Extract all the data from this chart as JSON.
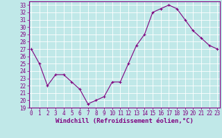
{
  "x": [
    0,
    1,
    2,
    3,
    4,
    5,
    6,
    7,
    8,
    9,
    10,
    11,
    12,
    13,
    14,
    15,
    16,
    17,
    18,
    19,
    20,
    21,
    22,
    23
  ],
  "y": [
    27,
    25,
    22,
    23.5,
    23.5,
    22.5,
    21.5,
    19.5,
    20,
    20.5,
    22.5,
    22.5,
    25,
    27.5,
    29,
    32,
    32.5,
    33,
    32.5,
    31,
    29.5,
    28.5,
    27.5,
    27
  ],
  "line_color": "#800080",
  "marker": "+",
  "marker_size": 3,
  "marker_linewidth": 0.8,
  "line_width": 0.8,
  "bg_color": "#c0e8e8",
  "grid_color": "#ffffff",
  "xlabel": "Windchill (Refroidissement éolien,°C)",
  "ylabel": "",
  "xlim": [
    -0.3,
    23.3
  ],
  "ylim": [
    19,
    33.5
  ],
  "yticks": [
    19,
    20,
    21,
    22,
    23,
    24,
    25,
    26,
    27,
    28,
    29,
    30,
    31,
    32,
    33
  ],
  "xticks": [
    0,
    1,
    2,
    3,
    4,
    5,
    6,
    7,
    8,
    9,
    10,
    11,
    12,
    13,
    14,
    15,
    16,
    17,
    18,
    19,
    20,
    21,
    22,
    23
  ],
  "tick_fontsize": 5.5,
  "xlabel_fontsize": 6.5,
  "axis_color": "#800080",
  "tick_color": "#800080",
  "spine_linewidth": 0.8
}
